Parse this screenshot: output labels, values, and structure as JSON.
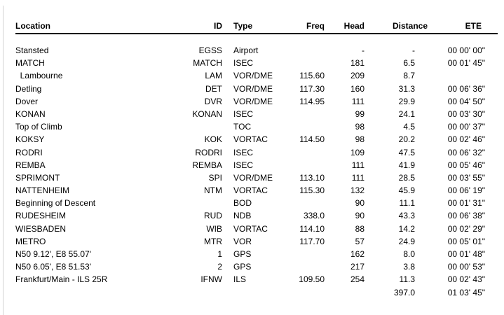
{
  "colors": {
    "background": "#ffffff",
    "text": "#000000",
    "rule": "#000000",
    "window_edge": "#d4d4d4"
  },
  "table": {
    "columns": [
      {
        "key": "location",
        "label": "Location"
      },
      {
        "key": "id",
        "label": "ID"
      },
      {
        "key": "type",
        "label": "Type"
      },
      {
        "key": "freq",
        "label": "Freq"
      },
      {
        "key": "head",
        "label": "Head"
      },
      {
        "key": "distance",
        "label": "Distance"
      },
      {
        "key": "ete",
        "label": "ETE"
      }
    ],
    "rows": [
      {
        "location": "Stansted",
        "id": "EGSS",
        "type": "Airport",
        "freq": "",
        "head": "-",
        "distance": "-",
        "ete": "00 00' 00\""
      },
      {
        "location": "MATCH",
        "id": "MATCH",
        "type": "ISEC",
        "freq": "",
        "head": "181",
        "distance": "6.5",
        "ete": "00 01' 45\""
      },
      {
        "location": "  Lambourne",
        "id": "LAM",
        "type": "VOR/DME",
        "freq": "115.60",
        "head": "209",
        "distance": "8.7",
        "ete": ""
      },
      {
        "location": "Detling",
        "id": "DET",
        "type": "VOR/DME",
        "freq": "117.30",
        "head": "160",
        "distance": "31.3",
        "ete": "00 06' 36\""
      },
      {
        "location": "Dover",
        "id": "DVR",
        "type": "VOR/DME",
        "freq": "114.95",
        "head": "111",
        "distance": "29.9",
        "ete": "00 04' 50\""
      },
      {
        "location": "KONAN",
        "id": "KONAN",
        "type": "ISEC",
        "freq": "",
        "head": "99",
        "distance": "24.1",
        "ete": "00 03' 30\""
      },
      {
        "location": "Top of Climb",
        "id": "",
        "type": "TOC",
        "freq": "",
        "head": "98",
        "distance": "4.5",
        "ete": "00 00' 37\""
      },
      {
        "location": "KOKSY",
        "id": "KOK",
        "type": "VORTAC",
        "freq": "114.50",
        "head": "98",
        "distance": "20.2",
        "ete": "00 02' 46\""
      },
      {
        "location": "RODRI",
        "id": "RODRI",
        "type": "ISEC",
        "freq": "",
        "head": "109",
        "distance": "47.5",
        "ete": "00 06' 32\""
      },
      {
        "location": "REMBA",
        "id": "REMBA",
        "type": "ISEC",
        "freq": "",
        "head": "111",
        "distance": "41.9",
        "ete": "00 05' 46\""
      },
      {
        "location": "SPRIMONT",
        "id": "SPI",
        "type": "VOR/DME",
        "freq": "113.10",
        "head": "111",
        "distance": "28.5",
        "ete": "00 03' 55\""
      },
      {
        "location": "NATTENHEIM",
        "id": "NTM",
        "type": "VORTAC",
        "freq": "115.30",
        "head": "132",
        "distance": "45.9",
        "ete": "00 06' 19\""
      },
      {
        "location": "Beginning of Descent",
        "id": "",
        "type": "BOD",
        "freq": "",
        "head": "90",
        "distance": "11.1",
        "ete": "00 01' 31\""
      },
      {
        "location": "RUDESHEIM",
        "id": "RUD",
        "type": "NDB",
        "freq": "338.0",
        "head": "90",
        "distance": "43.3",
        "ete": "00 06' 38\""
      },
      {
        "location": "WIESBADEN",
        "id": "WIB",
        "type": "VORTAC",
        "freq": "114.10",
        "head": "88",
        "distance": "14.2",
        "ete": "00 02' 29\""
      },
      {
        "location": "METRO",
        "id": "MTR",
        "type": "VOR",
        "freq": "117.70",
        "head": "57",
        "distance": "24.9",
        "ete": "00 05' 01\""
      },
      {
        "location": "N50 9.12', E8 55.07'",
        "id": "1",
        "type": "GPS",
        "freq": "",
        "head": "162",
        "distance": "8.0",
        "ete": "00 01' 48\""
      },
      {
        "location": "N50 6.05', E8 51.53'",
        "id": "2",
        "type": "GPS",
        "freq": "",
        "head": "217",
        "distance": "3.8",
        "ete": "00 00' 53\""
      },
      {
        "location": "Frankfurt/Main - ILS 25R",
        "id": "IFNW",
        "type": "ILS",
        "freq": "109.50",
        "head": "254",
        "distance": "11.3",
        "ete": "00 02' 43\""
      }
    ],
    "totals": {
      "location": "",
      "id": "",
      "type": "",
      "freq": "",
      "head": "",
      "distance": "397.0",
      "ete": "01 03' 45\""
    }
  }
}
